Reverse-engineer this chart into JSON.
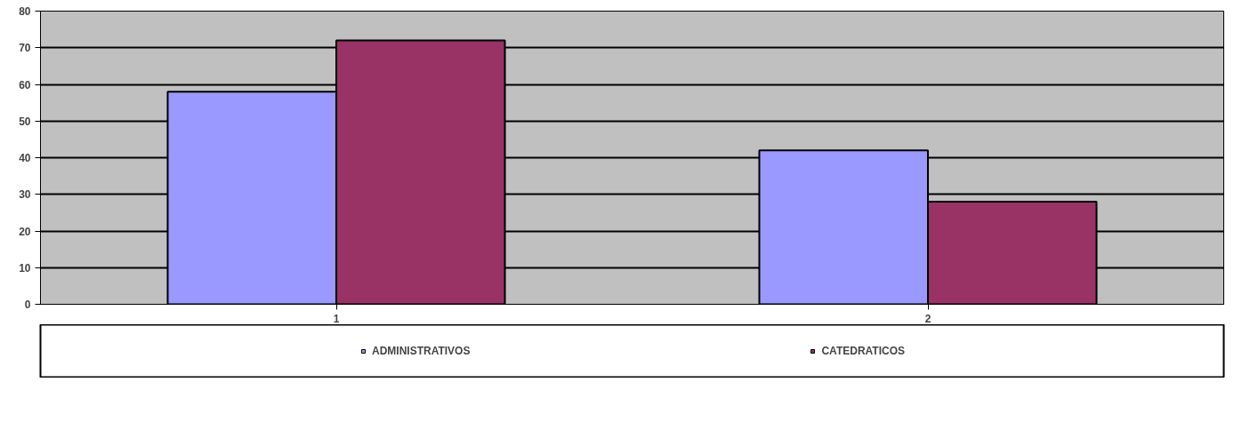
{
  "chart_data": {
    "type": "bar",
    "categories": [
      "1",
      "2"
    ],
    "series": [
      {
        "name": "ADMINISTRATIVOS",
        "color": "#9999ff",
        "values": [
          58,
          42
        ]
      },
      {
        "name": "CATEDRATICOS",
        "color": "#993366",
        "values": [
          72,
          28
        ]
      }
    ],
    "ylim": [
      0,
      80
    ],
    "yticks": [
      0,
      10,
      20,
      30,
      40,
      50,
      60,
      70,
      80
    ],
    "grid": "y",
    "legend": "bottom"
  }
}
